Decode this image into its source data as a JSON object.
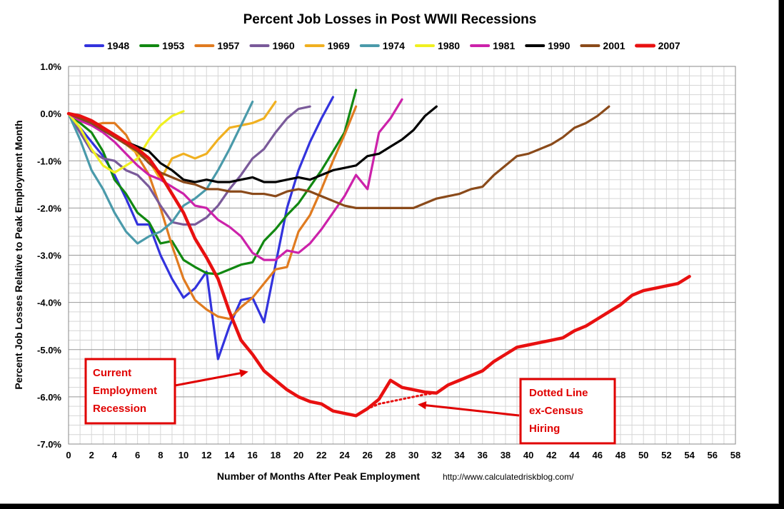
{
  "chart_data": {
    "type": "line",
    "title": "Percent Job Losses in Post WWII Recessions",
    "xlabel": "Number of Months After Peak Employment",
    "ylabel": "Percent Job Losses Relative to Peak Employment Month",
    "source_text": "http://www.calculatedriskblog.com/",
    "xlim": [
      0,
      58
    ],
    "ylim": [
      -7.0,
      1.0
    ],
    "x_ticks": [
      "0",
      "2",
      "4",
      "6",
      "8",
      "10",
      "12",
      "14",
      "16",
      "18",
      "20",
      "22",
      "24",
      "26",
      "28",
      "30",
      "32",
      "34",
      "36",
      "38",
      "40",
      "42",
      "44",
      "46",
      "48",
      "50",
      "52",
      "54",
      "56",
      "58"
    ],
    "y_ticks": [
      "1.0%",
      "0.0%",
      "-1.0%",
      "-2.0%",
      "-3.0%",
      "-4.0%",
      "-5.0%",
      "-6.0%",
      "-7.0%"
    ],
    "y_tick_values": [
      1,
      0,
      -1,
      -2,
      -3,
      -4,
      -5,
      -6,
      -7
    ],
    "grid": true,
    "legend_position": "top",
    "series": [
      {
        "name": "1948",
        "color": "#3333dd",
        "values": [
          0,
          -0.3,
          -0.6,
          -0.9,
          -1.3,
          -1.8,
          -2.35,
          -2.35,
          -3.0,
          -3.5,
          -3.9,
          -3.7,
          -3.35,
          -5.2,
          -4.5,
          -3.95,
          -3.9,
          -4.42,
          -3.2,
          -2.0,
          -1.2,
          -0.6,
          -0.1,
          0.35
        ]
      },
      {
        "name": "1953",
        "color": "#118811",
        "values": [
          0,
          -0.2,
          -0.4,
          -0.8,
          -1.4,
          -1.7,
          -2.1,
          -2.3,
          -2.75,
          -2.7,
          -3.1,
          -3.25,
          -3.38,
          -3.4,
          -3.3,
          -3.2,
          -3.15,
          -2.7,
          -2.45,
          -2.15,
          -1.9,
          -1.55,
          -1.2,
          -0.8,
          -0.4,
          0.5
        ]
      },
      {
        "name": "1957",
        "color": "#e07b20",
        "values": [
          0,
          -0.15,
          -0.25,
          -0.2,
          -0.2,
          -0.45,
          -0.9,
          -1.3,
          -2.0,
          -2.8,
          -3.5,
          -3.95,
          -4.15,
          -4.3,
          -4.35,
          -4.1,
          -3.9,
          -3.6,
          -3.3,
          -3.25,
          -2.5,
          -2.15,
          -1.6,
          -1.0,
          -0.45,
          0.15
        ]
      },
      {
        "name": "1960",
        "color": "#7a5a9a",
        "values": [
          0,
          -0.4,
          -0.8,
          -0.95,
          -1.0,
          -1.2,
          -1.3,
          -1.55,
          -1.95,
          -2.3,
          -2.35,
          -2.35,
          -2.2,
          -1.95,
          -1.6,
          -1.3,
          -0.95,
          -0.75,
          -0.4,
          -0.1,
          0.1,
          0.15
        ]
      },
      {
        "name": "1969",
        "color": "#f0b020",
        "values": [
          0,
          -0.05,
          -0.15,
          -0.3,
          -0.5,
          -0.65,
          -0.85,
          -1.0,
          -1.4,
          -0.95,
          -0.85,
          -0.95,
          -0.85,
          -0.55,
          -0.3,
          -0.25,
          -0.2,
          -0.1,
          0.25
        ]
      },
      {
        "name": "1974",
        "color": "#4a9aaa",
        "values": [
          0,
          -0.55,
          -1.2,
          -1.6,
          -2.1,
          -2.5,
          -2.75,
          -2.6,
          -2.5,
          -2.3,
          -1.95,
          -1.8,
          -1.6,
          -1.2,
          -0.75,
          -0.25,
          0.25
        ]
      },
      {
        "name": "1980",
        "color": "#f0f020",
        "values": [
          0,
          -0.3,
          -0.75,
          -1.1,
          -1.25,
          -1.1,
          -0.95,
          -0.55,
          -0.25,
          -0.05,
          0.05
        ]
      },
      {
        "name": "1981",
        "color": "#cc22aa",
        "values": [
          0,
          -0.15,
          -0.25,
          -0.4,
          -0.6,
          -0.85,
          -1.1,
          -1.3,
          -1.4,
          -1.55,
          -1.7,
          -1.95,
          -2.0,
          -2.25,
          -2.4,
          -2.6,
          -2.95,
          -3.1,
          -3.1,
          -2.9,
          -2.95,
          -2.75,
          -2.45,
          -2.1,
          -1.75,
          -1.3,
          -1.6,
          -0.4,
          -0.1,
          0.3
        ]
      },
      {
        "name": "1990",
        "color": "#000000",
        "values": [
          0,
          -0.1,
          -0.2,
          -0.35,
          -0.5,
          -0.6,
          -0.7,
          -0.8,
          -1.05,
          -1.2,
          -1.4,
          -1.45,
          -1.4,
          -1.45,
          -1.45,
          -1.4,
          -1.35,
          -1.45,
          -1.45,
          -1.4,
          -1.35,
          -1.4,
          -1.3,
          -1.2,
          -1.15,
          -1.1,
          -0.9,
          -0.85,
          -0.7,
          -0.55,
          -0.35,
          -0.05,
          0.15
        ]
      },
      {
        "name": "2001",
        "color": "#8a4a1a",
        "values": [
          0,
          -0.1,
          -0.2,
          -0.35,
          -0.5,
          -0.65,
          -0.8,
          -1.05,
          -1.25,
          -1.35,
          -1.45,
          -1.5,
          -1.6,
          -1.6,
          -1.65,
          -1.65,
          -1.7,
          -1.7,
          -1.75,
          -1.65,
          -1.6,
          -1.65,
          -1.75,
          -1.85,
          -1.95,
          -2.0,
          -2.0,
          -2.0,
          -2.0,
          -2.0,
          -2.0,
          -1.9,
          -1.8,
          -1.75,
          -1.7,
          -1.6,
          -1.55,
          -1.3,
          -1.1,
          -0.9,
          -0.85,
          -0.75,
          -0.65,
          -0.5,
          -0.3,
          -0.2,
          -0.05,
          0.15
        ]
      },
      {
        "name": "2007",
        "color": "#e81010",
        "values": [
          0,
          -0.05,
          -0.15,
          -0.3,
          -0.45,
          -0.6,
          -0.75,
          -0.95,
          -1.3,
          -1.7,
          -2.1,
          -2.65,
          -3.05,
          -3.5,
          -4.2,
          -4.8,
          -5.1,
          -5.45,
          -5.65,
          -5.85,
          -6.0,
          -6.1,
          -6.15,
          -6.3,
          -6.35,
          -6.4,
          -6.25,
          -6.05,
          -5.65,
          -5.8,
          -5.85,
          -5.9,
          -5.92,
          -5.75,
          -5.65,
          -5.55,
          -5.45,
          -5.25,
          -5.1,
          -4.95,
          -4.9,
          -4.85,
          -4.8,
          -4.75,
          -4.6,
          -4.5,
          -4.35,
          -4.2,
          -4.05,
          -3.85,
          -3.75,
          -3.7,
          -3.65,
          -3.6,
          -3.45
        ]
      }
    ],
    "dotted_segment": {
      "series": "2007",
      "x": [
        25,
        26,
        27,
        28,
        29,
        30,
        31,
        32
      ],
      "values": [
        -6.4,
        -6.25,
        -6.15,
        -6.1,
        -6.05,
        -6.0,
        -5.95,
        -5.92
      ]
    },
    "annotations": [
      {
        "name": "current-employment-recession",
        "lines": [
          "Current",
          "Employment",
          "Recession"
        ],
        "color": "#e00000",
        "points_to_x": 16,
        "points_to_y": -5.45
      },
      {
        "name": "dotted-line-ex-census",
        "lines": [
          "Dotted Line",
          "ex-Census",
          "Hiring"
        ],
        "color": "#e00000",
        "points_to_x": 30,
        "points_to_y": -6.15
      }
    ]
  }
}
